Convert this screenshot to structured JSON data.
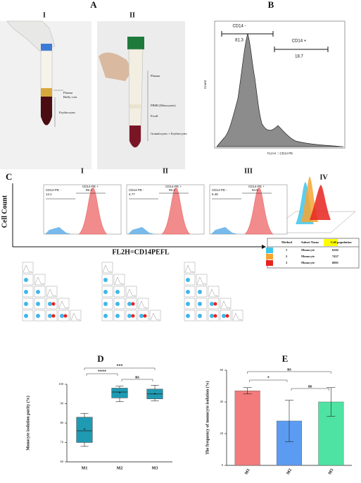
{
  "panel_a": {
    "label": "A",
    "sub": [
      "I",
      "II"
    ],
    "tube1": [
      "Plasma",
      "Buffy coat",
      "Erythrocytes"
    ],
    "tube2": [
      "Plasma",
      "PBMC(Monocytes)",
      "Ficoll",
      "Granulocytes + Erythrocytes"
    ]
  },
  "panel_b": {
    "label": "B",
    "gates": [
      {
        "name": "CD14 -",
        "value": 81.3
      },
      {
        "name": "CD14 +",
        "value": 18.7
      }
    ],
    "ylabel": "Count",
    "xlabel": "FL2-H :: CD14 PE"
  },
  "panel_c": {
    "label": "C",
    "plots": [
      {
        "label": "I",
        "neg": "CD14-PE -",
        "neg_value": 14.1,
        "pos": "CD14-PE +",
        "pos_value": 85.2
      },
      {
        "label": "II",
        "neg": "CD14-PE -",
        "neg_value": 4.77,
        "pos": "CD14-PE +",
        "pos_value": 95.2
      },
      {
        "label": "III",
        "neg": "CD14-PE -",
        "neg_value": 5.46,
        "pos": "CD14-PE +",
        "pos_value": 94.5
      }
    ],
    "overlay_label": "IV",
    "ylabel": "Cell Count",
    "xlabel": "FL2H=CD14PEFL",
    "table": {
      "header": [
        "Method",
        "Subset Name",
        "Cell population"
      ],
      "rows": [
        [
          1,
          "Monocyte",
          6202
        ],
        [
          2,
          "Monocyte",
          7437
        ],
        [
          3,
          "Monocyte",
          6801
        ]
      ],
      "colors": [
        "#3fc6ea",
        "#f7a531",
        "#e8231f"
      ]
    }
  },
  "chart_data": [
    {
      "type": "box",
      "title": "D",
      "ylabel": "Monocyte isolation purity (%)",
      "categories": [
        "M1",
        "M2",
        "M3"
      ],
      "color": "#1e9ab3",
      "min": [
        68,
        91,
        91.5
      ],
      "q1": [
        70,
        93,
        92.5
      ],
      "median": [
        76,
        96,
        95
      ],
      "q3": [
        83,
        98,
        97.5
      ],
      "max": [
        85,
        99,
        99.5
      ],
      "mean": [
        76.5,
        95.5,
        95
      ],
      "ylim": [
        60,
        100
      ],
      "yticks": [
        60,
        70,
        80,
        90,
        100
      ],
      "annotations": [
        {
          "between": [
            "M1",
            "M3"
          ],
          "text": "***"
        },
        {
          "between": [
            "M1",
            "M2"
          ],
          "text": "****"
        },
        {
          "between": [
            "M2",
            "M3"
          ],
          "text": "ns"
        }
      ]
    },
    {
      "type": "bar",
      "title": "E",
      "ylabel": "The frequency of monocyte isolation (%)",
      "categories": [
        "M1",
        "M2",
        "M3"
      ],
      "values": [
        47,
        28,
        40
      ],
      "errors": [
        2,
        13,
        9
      ],
      "colors": [
        "#f47b7b",
        "#5b9cf2",
        "#4fe3a3"
      ],
      "ylim": [
        0,
        60
      ],
      "yticks": [
        0,
        20,
        40,
        60
      ],
      "annotations": [
        {
          "between": [
            "M1",
            "M3"
          ],
          "text": "ns"
        },
        {
          "between": [
            "M1",
            "M2"
          ],
          "text": "*"
        },
        {
          "between": [
            "M2",
            "M3"
          ],
          "text": "ns"
        }
      ]
    }
  ]
}
